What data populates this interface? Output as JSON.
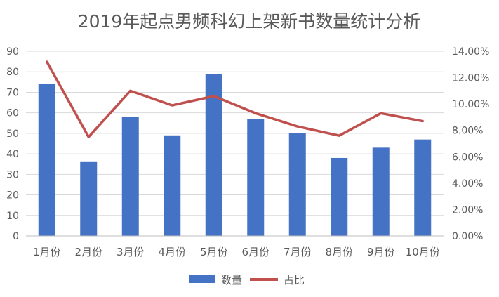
{
  "chart_data": {
    "type": "bar",
    "title": "2019年起点男频科幻上架新书数量统计分析",
    "categories": [
      "1月份",
      "2月份",
      "3月份",
      "4月份",
      "5月份",
      "6月份",
      "7月份",
      "8月份",
      "9月份",
      "10月份"
    ],
    "series": [
      {
        "name": "数量",
        "type": "bar",
        "axis": "left",
        "color": "#4472C4",
        "values": [
          74,
          36,
          58,
          49,
          79,
          57,
          50,
          38,
          43,
          47
        ]
      },
      {
        "name": "占比",
        "type": "line",
        "axis": "right",
        "color": "#C0504D",
        "values": [
          13.2,
          7.5,
          11.0,
          9.9,
          10.6,
          9.3,
          8.3,
          7.6,
          9.3,
          8.7
        ]
      }
    ],
    "y_left": {
      "ylim": [
        0,
        90
      ],
      "ticks": [
        "0",
        "10",
        "20",
        "30",
        "40",
        "50",
        "60",
        "70",
        "80",
        "90"
      ]
    },
    "y_right": {
      "ylim": [
        0,
        14
      ],
      "ticks": [
        "0.00%",
        "2.00%",
        "4.00%",
        "6.00%",
        "8.00%",
        "10.00%",
        "12.00%",
        "14.00%"
      ]
    },
    "grid": true,
    "legend_position": "bottom"
  }
}
